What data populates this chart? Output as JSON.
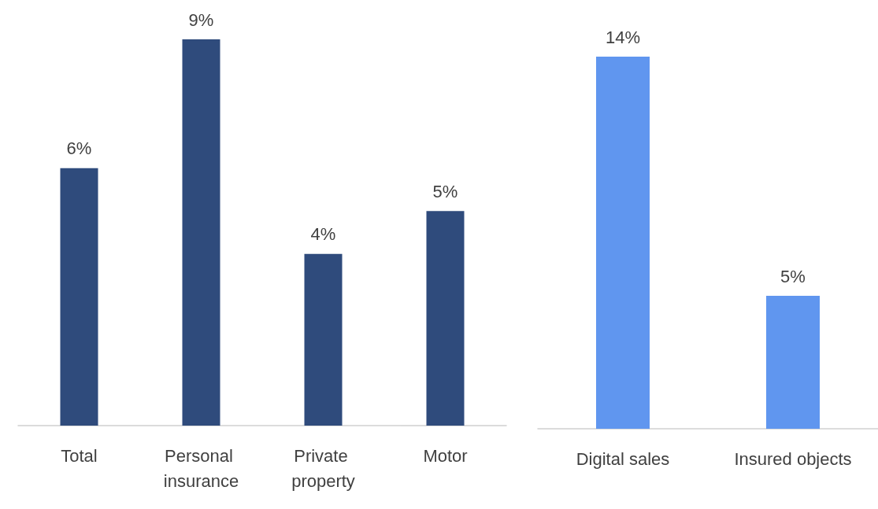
{
  "chart_data": [
    {
      "type": "bar",
      "categories": [
        "Total",
        "Personal insurance",
        "Private property",
        "Motor"
      ],
      "values": [
        6,
        9,
        4,
        5
      ],
      "color": "#2f4b7c",
      "data_labels": true,
      "value_labels": [
        "6%",
        "9%",
        "4%",
        "5%"
      ]
    },
    {
      "type": "bar",
      "categories": [
        "Digital sales",
        "Insured objects"
      ],
      "values": [
        14,
        5
      ],
      "color": "#6096ef",
      "data_labels": true,
      "value_labels": [
        "14%",
        "5%"
      ]
    }
  ]
}
